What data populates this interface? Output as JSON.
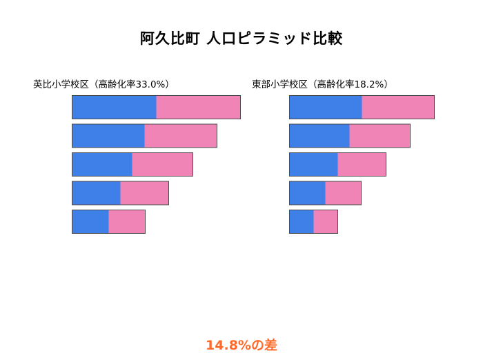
{
  "title": "阿久比町 人口ピラミッド比較",
  "footer": "14.8%の差",
  "colors": {
    "male": "#3f7fe8",
    "female": "#f184b6",
    "edge": "#4a4a4a",
    "accent": "#ff6a2b"
  },
  "chart_data": [
    {
      "type": "bar",
      "stacked": true,
      "orientation": "horizontal",
      "title": "英比小学校区（高齢化率33.0%）",
      "series": [
        {
          "values": [
            122,
            105,
            87,
            70,
            53
          ]
        },
        {
          "values": [
            122,
            105,
            88,
            70,
            53
          ]
        }
      ]
    },
    {
      "type": "bar",
      "stacked": true,
      "orientation": "horizontal",
      "title": "東部小学校区（高齢化率18.2%）",
      "series": [
        {
          "values": [
            105,
            87,
            70,
            52,
            35
          ]
        },
        {
          "values": [
            105,
            88,
            70,
            52,
            35
          ]
        }
      ]
    }
  ]
}
